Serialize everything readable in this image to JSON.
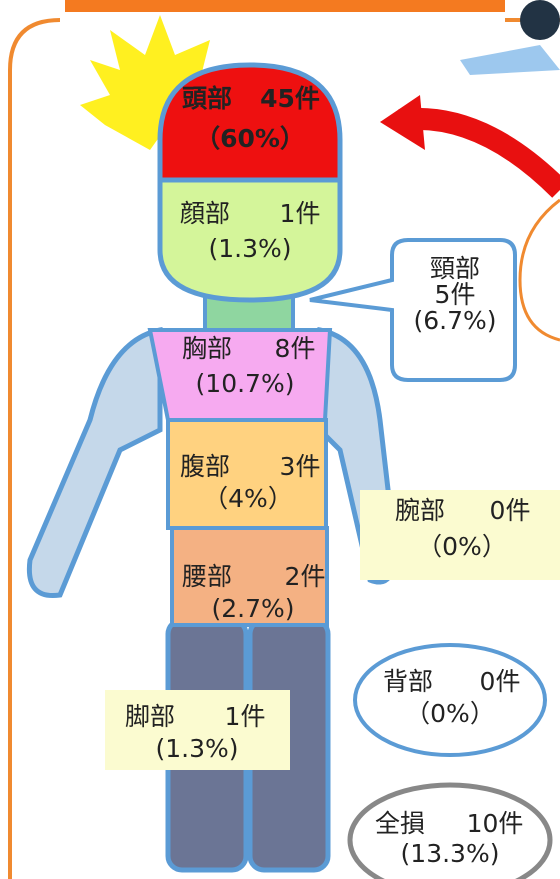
{
  "parts": [
    {
      "name": "頭部",
      "count": "45件",
      "percent": "（60%）"
    },
    {
      "name": "顔部",
      "count": "1件",
      "percent": "(1.3%)"
    },
    {
      "name": "頸部",
      "count": "5件",
      "percent": "(6.7%)"
    },
    {
      "name": "胸部",
      "count": "8件",
      "percent": "(10.7%)"
    },
    {
      "name": "腹部",
      "count": "3件",
      "percent": "（4%）"
    },
    {
      "name": "腕部",
      "count": "0件",
      "percent": "（0%）"
    },
    {
      "name": "腰部",
      "count": "2件",
      "percent": "(2.7%)"
    },
    {
      "name": "脚部",
      "count": "1件",
      "percent": "(1.3%)"
    },
    {
      "name": "背部",
      "count": "0件",
      "percent": "（0%）"
    },
    {
      "name": "全損",
      "count": "10件",
      "percent": "(13.3%)"
    }
  ]
}
